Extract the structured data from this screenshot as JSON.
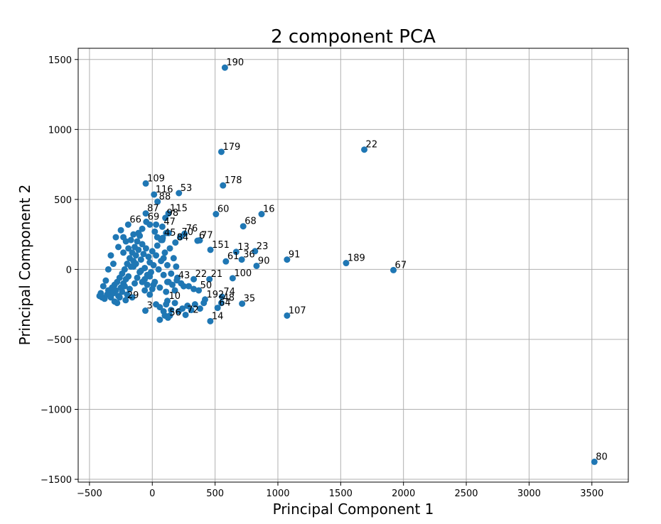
{
  "chart_data": {
    "type": "scatter",
    "title": "2 component PCA",
    "xlabel": "Principal Component 1",
    "ylabel": "Principal Component 2",
    "xlim": [
      -590,
      3790
    ],
    "ylim": [
      -1520,
      1580
    ],
    "xticks": [
      -500,
      0,
      500,
      1000,
      1500,
      2000,
      2500,
      3000,
      3500
    ],
    "yticks": [
      -1500,
      -1000,
      -500,
      0,
      500,
      1000,
      1500
    ],
    "grid": true,
    "color": "#1f77b4",
    "points": [
      {
        "label": "190",
        "x": 578,
        "y": 1442
      },
      {
        "label": "22",
        "x": 1688,
        "y": 856
      },
      {
        "label": "179",
        "x": 550,
        "y": 840
      },
      {
        "label": "109",
        "x": -52,
        "y": 614
      },
      {
        "label": "178",
        "x": 563,
        "y": 600
      },
      {
        "label": "53",
        "x": 212,
        "y": 545
      },
      {
        "label": "116",
        "x": 14,
        "y": 535
      },
      {
        "label": "88",
        "x": 42,
        "y": 484
      },
      {
        "label": "115",
        "x": 129,
        "y": 400
      },
      {
        "label": "87",
        "x": -52,
        "y": 400
      },
      {
        "label": "60",
        "x": 507,
        "y": 395
      },
      {
        "label": "16",
        "x": 870,
        "y": 395
      },
      {
        "label": "98",
        "x": 104,
        "y": 368
      },
      {
        "label": "66",
        "x": -192,
        "y": 320
      },
      {
        "label": "69",
        "x": -48,
        "y": 340
      },
      {
        "label": "68",
        "x": 724,
        "y": 308
      },
      {
        "label": "47",
        "x": 80,
        "y": 305
      },
      {
        "label": "76",
        "x": 257,
        "y": 255
      },
      {
        "label": "70",
        "x": 222,
        "y": 230
      },
      {
        "label": "6",
        "x": 360,
        "y": 205
      },
      {
        "label": "77",
        "x": 378,
        "y": 208
      },
      {
        "label": "45",
        "x": 83,
        "y": 225
      },
      {
        "label": "84",
        "x": 184,
        "y": 192
      },
      {
        "label": "151",
        "x": 463,
        "y": 140
      },
      {
        "label": "13",
        "x": 668,
        "y": 125
      },
      {
        "label": "23",
        "x": 818,
        "y": 130
      },
      {
        "label": "36",
        "x": 712,
        "y": 70
      },
      {
        "label": "61",
        "x": 586,
        "y": 57
      },
      {
        "label": "91",
        "x": 1073,
        "y": 70
      },
      {
        "label": "189",
        "x": 1543,
        "y": 45
      },
      {
        "label": "90",
        "x": 830,
        "y": 25
      },
      {
        "label": "67",
        "x": 1920,
        "y": -5
      },
      {
        "label": "100",
        "x": 640,
        "y": -63
      },
      {
        "label": "22",
        "x": 330,
        "y": -70
      },
      {
        "label": "21",
        "x": 455,
        "y": -70
      },
      {
        "label": "43",
        "x": 195,
        "y": -78
      },
      {
        "label": "74",
        "x": 555,
        "y": -195
      },
      {
        "label": "192",
        "x": 420,
        "y": -215
      },
      {
        "label": "50",
        "x": 370,
        "y": -150
      },
      {
        "label": "48",
        "x": 550,
        "y": -240
      },
      {
        "label": "35",
        "x": 715,
        "y": -245
      },
      {
        "label": "107",
        "x": 1073,
        "y": -330
      },
      {
        "label": "64",
        "x": 520,
        "y": -275
      },
      {
        "label": "72",
        "x": 265,
        "y": -325
      },
      {
        "label": "14",
        "x": 462,
        "y": -370
      },
      {
        "label": "10",
        "x": 120,
        "y": -225
      },
      {
        "label": "56",
        "x": 125,
        "y": -345
      },
      {
        "label": "3",
        "x": -55,
        "y": -295
      },
      {
        "label": "29",
        "x": -212,
        "y": -220
      },
      {
        "label": "80",
        "x": 3520,
        "y": -1375
      }
    ],
    "cluster_points": [
      [
        -420,
        -190
      ],
      [
        -400,
        -200
      ],
      [
        -380,
        -210
      ],
      [
        -360,
        -180
      ],
      [
        -350,
        -150
      ],
      [
        -340,
        -160
      ],
      [
        -330,
        -200
      ],
      [
        -320,
        -130
      ],
      [
        -310,
        -170
      ],
      [
        -300,
        -110
      ],
      [
        -290,
        -150
      ],
      [
        -280,
        -90
      ],
      [
        -270,
        -190
      ],
      [
        -260,
        -60
      ],
      [
        -250,
        -130
      ],
      [
        -240,
        -30
      ],
      [
        -230,
        -100
      ],
      [
        -220,
        0
      ],
      [
        -210,
        -70
      ],
      [
        -200,
        40
      ],
      [
        -190,
        -50
      ],
      [
        -180,
        80
      ],
      [
        -170,
        20
      ],
      [
        -160,
        120
      ],
      [
        -150,
        60
      ],
      [
        -140,
        160
      ],
      [
        -130,
        100
      ],
      [
        -120,
        200
      ],
      [
        -110,
        140
      ],
      [
        -100,
        240
      ],
      [
        -90,
        70
      ],
      [
        -80,
        180
      ],
      [
        -70,
        110
      ],
      [
        -60,
        10
      ],
      [
        -50,
        150
      ],
      [
        -40,
        -40
      ],
      [
        -30,
        90
      ],
      [
        -20,
        50
      ],
      [
        -10,
        -20
      ],
      [
        0,
        130
      ],
      [
        10,
        30
      ],
      [
        20,
        -90
      ],
      [
        30,
        100
      ],
      [
        40,
        170
      ],
      [
        50,
        0
      ],
      [
        60,
        -130
      ],
      [
        70,
        60
      ],
      [
        80,
        210
      ],
      [
        90,
        -40
      ],
      [
        100,
        120
      ],
      [
        110,
        -160
      ],
      [
        120,
        30
      ],
      [
        130,
        -90
      ],
      [
        140,
        150
      ],
      [
        150,
        -30
      ],
      [
        160,
        -110
      ],
      [
        170,
        80
      ],
      [
        180,
        -150
      ],
      [
        190,
        20
      ],
      [
        200,
        -60
      ],
      [
        -330,
        100
      ],
      [
        -310,
        40
      ],
      [
        -290,
        230
      ],
      [
        -270,
        160
      ],
      [
        -250,
        280
      ],
      [
        -230,
        120
      ],
      [
        -210,
        200
      ],
      [
        -350,
        0
      ],
      [
        -370,
        -80
      ],
      [
        -390,
        -120
      ],
      [
        -410,
        -170
      ],
      [
        -300,
        -230
      ],
      [
        -280,
        -240
      ],
      [
        -260,
        -200
      ],
      [
        -240,
        -160
      ],
      [
        -220,
        -120
      ],
      [
        -200,
        -180
      ],
      [
        -180,
        -140
      ],
      [
        -160,
        -200
      ],
      [
        -140,
        -100
      ],
      [
        -120,
        -60
      ],
      [
        -100,
        -20
      ],
      [
        -80,
        -90
      ],
      [
        -60,
        -150
      ],
      [
        -40,
        -110
      ],
      [
        -20,
        -180
      ],
      [
        0,
        -140
      ],
      [
        30,
        -250
      ],
      [
        60,
        -270
      ],
      [
        90,
        -300
      ],
      [
        110,
        -250
      ],
      [
        150,
        -290
      ],
      [
        180,
        -240
      ],
      [
        210,
        -300
      ],
      [
        240,
        -280
      ],
      [
        280,
        -260
      ],
      [
        310,
        -290
      ],
      [
        340,
        -250
      ],
      [
        380,
        -280
      ],
      [
        410,
        -240
      ],
      [
        60,
        -360
      ],
      [
        100,
        -330
      ],
      [
        140,
        -330
      ],
      [
        250,
        -120
      ],
      [
        290,
        -120
      ],
      [
        330,
        -140
      ],
      [
        230,
        -100
      ],
      [
        120,
        -90
      ],
      [
        90,
        80
      ],
      [
        70,
        210
      ],
      [
        110,
        260
      ],
      [
        130,
        260
      ],
      [
        20,
        270
      ],
      [
        -80,
        290
      ],
      [
        -20,
        320
      ],
      [
        30,
        320
      ],
      [
        40,
        230
      ],
      [
        -110,
        260
      ],
      [
        -150,
        250
      ],
      [
        -170,
        210
      ],
      [
        -230,
        230
      ],
      [
        -190,
        150
      ],
      [
        -150,
        20
      ],
      [
        -130,
        40
      ],
      [
        -90,
        -10
      ],
      [
        -60,
        -70
      ],
      [
        -20,
        -50
      ],
      [
        10,
        -110
      ]
    ]
  }
}
